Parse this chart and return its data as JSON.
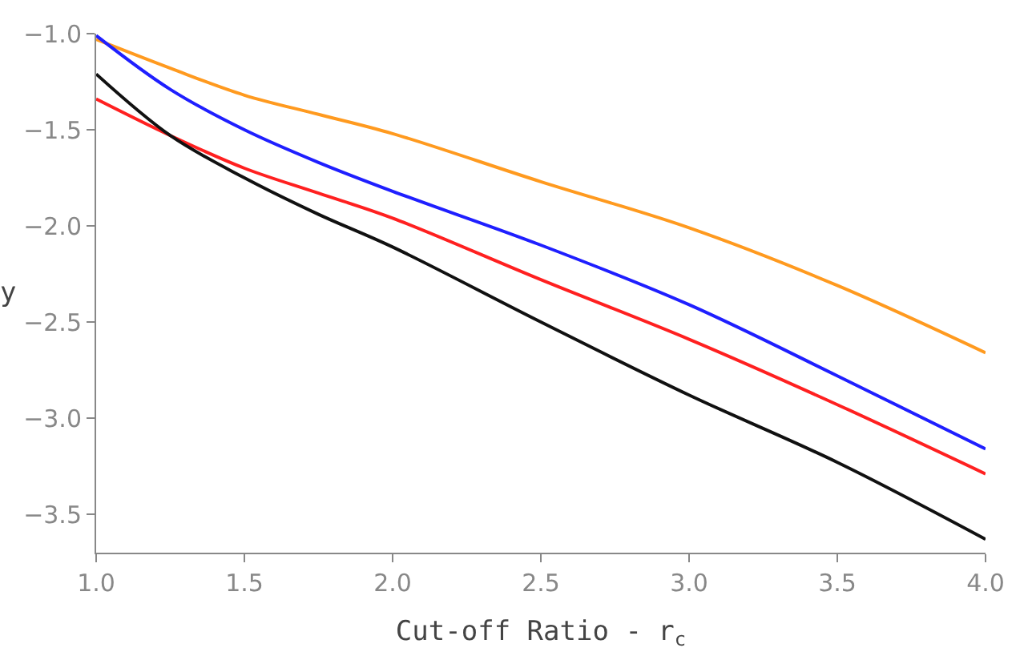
{
  "chart_data": {
    "type": "line",
    "xlabel": "Cut-off Ratio - r$_{c}$",
    "ylabel": "y",
    "x": [
      1.0,
      1.25,
      1.5,
      1.75,
      2.0,
      2.5,
      3.0,
      3.5,
      4.0
    ],
    "series": [
      {
        "color": "#ff9a1f",
        "values": [
          -1.03,
          -1.18,
          -1.32,
          -1.42,
          -1.52,
          -1.77,
          -2.01,
          -2.31,
          -2.66
        ]
      },
      {
        "color": "#1f1fff",
        "values": [
          -1.01,
          -1.29,
          -1.5,
          -1.67,
          -1.82,
          -2.1,
          -2.41,
          -2.78,
          -3.16
        ]
      },
      {
        "color": "#ff2020",
        "values": [
          -1.34,
          -1.53,
          -1.7,
          -1.83,
          -1.96,
          -2.28,
          -2.59,
          -2.93,
          -3.29
        ]
      },
      {
        "color": "#111111",
        "values": [
          -1.21,
          -1.53,
          -1.75,
          -1.94,
          -2.11,
          -2.5,
          -2.88,
          -3.23,
          -3.63
        ]
      }
    ],
    "xlim": [
      1.0,
      4.0
    ],
    "ylim": [
      -3.7,
      -1.0
    ],
    "xticks": [
      {
        "value": 1.0,
        "label": "1.0"
      },
      1.5,
      {
        "value": 2.0,
        "label": "2.0"
      },
      2.5,
      {
        "value": 3.0,
        "label": "3.0"
      },
      3.5,
      {
        "value": 4.0,
        "label": "4.0"
      }
    ],
    "yticks": [
      {
        "value": -1.0,
        "label": "−1.0"
      },
      {
        "value": -1.5,
        "label": "−1.5"
      },
      {
        "value": -2.0,
        "label": "−2.0"
      },
      {
        "value": -2.5,
        "label": "−2.5"
      },
      {
        "value": -3.0,
        "label": "−3.0"
      },
      {
        "value": -3.5,
        "label": "−3.5"
      }
    ],
    "marker": "none",
    "line_style": "solid"
  }
}
